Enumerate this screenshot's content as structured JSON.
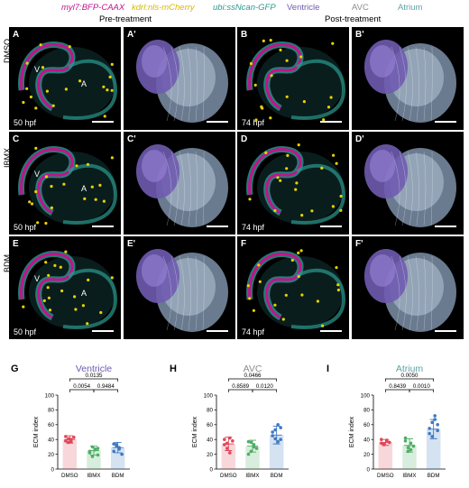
{
  "legend": {
    "myl7": "myl7:BFP-CAAX",
    "kdrl": "kdrl:nls-mCherry",
    "ubi": "ubi:ssNcan-GFP",
    "ventricle": "Ventricle",
    "avc": "AVC",
    "atrium": "Atrium"
  },
  "headers": {
    "pre": "Pre-treatment",
    "post": "Post-treatment"
  },
  "rows": [
    "DMSO",
    "IBMX",
    "BDM"
  ],
  "panels": [
    [
      "A",
      "A'",
      "B",
      "B'"
    ],
    [
      "C",
      "C'",
      "D",
      "D'"
    ],
    [
      "E",
      "E'",
      "F",
      "F'"
    ]
  ],
  "hpf_pre": "50 hpf",
  "hpf_post": "74 hpf",
  "chamber_v": "V",
  "chamber_a": "A",
  "colors": {
    "magenta": "#c0148c",
    "yellow": "#d8b800",
    "teal": "#2a9a8e",
    "ventricle": "#6f5bb0",
    "avc": "#8c8c8c",
    "atrium": "#5fa3a3",
    "dmso": "#e0475a",
    "ibmx": "#4fae64",
    "bdm": "#3f79c2"
  },
  "chart_data": [
    {
      "type": "bar",
      "panel": "G",
      "title": "Ventricle",
      "ylabel": "ECM index",
      "categories": [
        "DMSO",
        "IBMX",
        "BDM"
      ],
      "values": [
        40,
        25,
        29
      ],
      "errors": [
        5,
        6,
        7
      ],
      "points": [
        [
          44,
          41,
          37,
          43,
          38,
          36,
          40
        ],
        [
          22,
          30,
          27,
          19,
          24,
          17,
          26,
          28
        ],
        [
          24,
          33,
          29,
          20,
          34,
          31,
          27
        ]
      ],
      "ylim": [
        0,
        100
      ],
      "yticks": [
        0,
        20,
        40,
        60,
        80,
        100
      ],
      "brackets": [
        {
          "from": 0,
          "to": 2,
          "label": "0.0135"
        },
        {
          "from": 0,
          "to": 1,
          "label": "0.0054"
        },
        {
          "from": 1,
          "to": 2,
          "label": "0.9484"
        }
      ]
    },
    {
      "type": "bar",
      "panel": "H",
      "title": "AVC",
      "ylabel": "ECM index",
      "categories": [
        "DMSO",
        "IBMX",
        "BDM"
      ],
      "values": [
        34,
        31,
        46
      ],
      "errors": [
        9,
        8,
        12
      ],
      "points": [
        [
          40,
          28,
          22,
          38,
          33,
          35,
          42
        ],
        [
          37,
          24,
          33,
          28,
          20,
          36,
          30
        ],
        [
          50,
          41,
          37,
          56,
          45,
          53,
          60,
          40
        ]
      ],
      "ylim": [
        0,
        100
      ],
      "yticks": [
        0,
        20,
        40,
        60,
        80,
        100
      ],
      "brackets": [
        {
          "from": 0,
          "to": 2,
          "label": "0.0466"
        },
        {
          "from": 0,
          "to": 1,
          "label": "0.8589"
        },
        {
          "from": 1,
          "to": 2,
          "label": "0.0120"
        }
      ]
    },
    {
      "type": "bar",
      "panel": "I",
      "title": "Atrium",
      "ylabel": "ECM index",
      "categories": [
        "DMSO",
        "IBMX",
        "BDM"
      ],
      "values": [
        36,
        32,
        54
      ],
      "errors": [
        4,
        9,
        13
      ],
      "points": [
        [
          35,
          33,
          38,
          36,
          40,
          34,
          39
        ],
        [
          42,
          29,
          26,
          31,
          38,
          24,
          35
        ],
        [
          48,
          63,
          72,
          60,
          55,
          44,
          67,
          52
        ]
      ],
      "ylim": [
        0,
        100
      ],
      "yticks": [
        0,
        20,
        40,
        60,
        80,
        100
      ],
      "brackets": [
        {
          "from": 0,
          "to": 2,
          "label": "0.0050"
        },
        {
          "from": 0,
          "to": 1,
          "label": "0.8439"
        },
        {
          "from": 1,
          "to": 2,
          "label": "0.0010"
        }
      ]
    }
  ]
}
